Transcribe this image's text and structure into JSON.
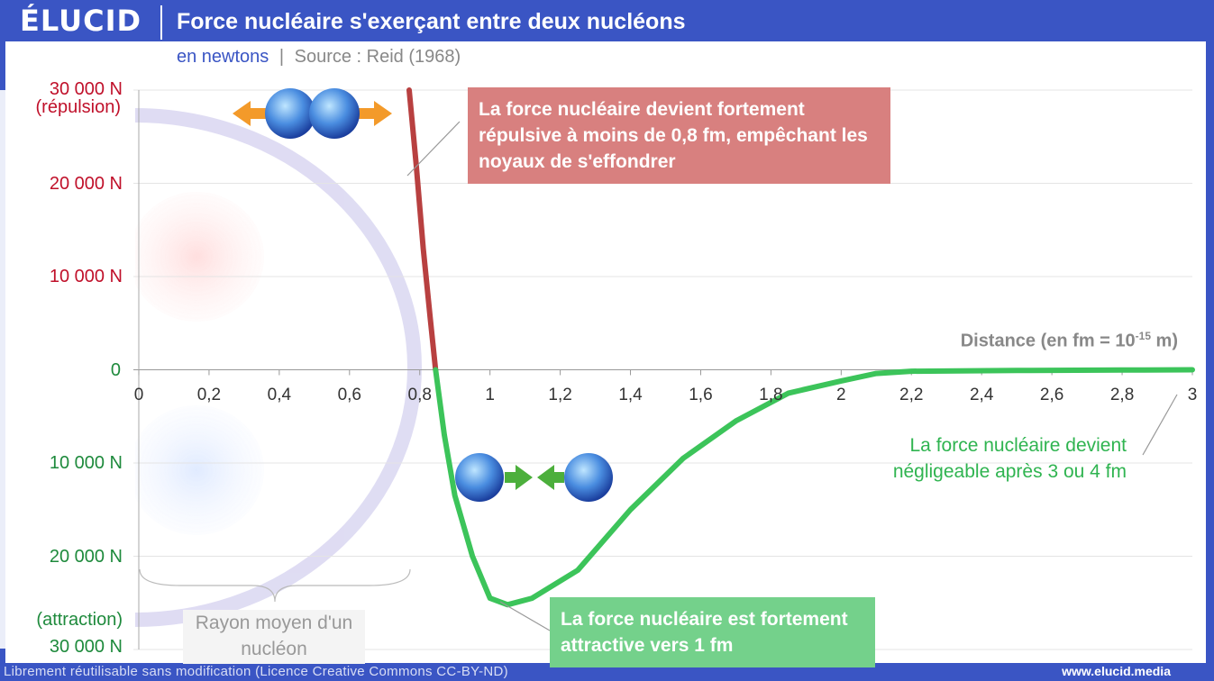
{
  "header": {
    "logo": "ÉLUCID",
    "title": "Force nucléaire s'exerçant entre deux nucléons"
  },
  "subtitle": {
    "unit": "en newtons",
    "separator": "|",
    "source": "Source : Reid (1968)"
  },
  "chart_data": {
    "type": "line",
    "xlabel": "Distance (en fm = 10",
    "xlabel_exp": "-15",
    "xlabel_suffix": " m)",
    "xlim": [
      0,
      3
    ],
    "ylim": [
      -30000,
      30000
    ],
    "x_ticks": [
      "0",
      "0,2",
      "0,4",
      "0,6",
      "0,8",
      "1",
      "1,2",
      "1,4",
      "1,6",
      "1,8",
      "2",
      "2,2",
      "2,4",
      "2,6",
      "2,8",
      "3"
    ],
    "y_ticks": [
      {
        "value": 30000,
        "label": "30 000 N",
        "color": "#c0102a"
      },
      {
        "value": 20000,
        "label": "20 000 N",
        "color": "#c0102a"
      },
      {
        "value": 10000,
        "label": "10 000 N",
        "color": "#c0102a"
      },
      {
        "value": 0,
        "label": "0",
        "color": "#1e8a3c"
      },
      {
        "value": -10000,
        "label": "10 000 N",
        "color": "#1e8a3c"
      },
      {
        "value": -20000,
        "label": "20 000 N",
        "color": "#1e8a3c"
      },
      {
        "value": -30000,
        "label": "30 000 N",
        "color": "#1e8a3c"
      }
    ],
    "y_top_note": "(répulsion)",
    "y_bottom_note": "(attraction)",
    "grid": true,
    "series": [
      {
        "color": "#b84040",
        "points": [
          [
            0.77,
            30000
          ],
          [
            0.79,
            22000
          ],
          [
            0.81,
            13000
          ],
          [
            0.83,
            5500
          ],
          [
            0.845,
            0
          ]
        ]
      },
      {
        "color": "#3cc45a",
        "points": [
          [
            0.845,
            0
          ],
          [
            0.87,
            -7000
          ],
          [
            0.9,
            -13500
          ],
          [
            0.95,
            -20000
          ],
          [
            1.0,
            -24500
          ],
          [
            1.05,
            -25200
          ],
          [
            1.12,
            -24500
          ],
          [
            1.25,
            -21500
          ],
          [
            1.4,
            -15000
          ],
          [
            1.55,
            -9500
          ],
          [
            1.7,
            -5500
          ],
          [
            1.85,
            -2500
          ],
          [
            2.0,
            -1200
          ],
          [
            2.1,
            -400
          ],
          [
            2.2,
            -150
          ],
          [
            2.5,
            -80
          ],
          [
            2.8,
            -30
          ],
          [
            3.0,
            0
          ]
        ]
      }
    ],
    "annotations": {
      "repulsive": "La force nucléaire devient fortement répulsive à moins de 0,8 fm, empêchant les noyaux de s'effondrer",
      "attractive": "La force nucléaire est fortement attractive vers 1 fm",
      "negligible": "La force nucléaire devient négligeable après 3 ou 4 fm",
      "radius": "Rayon moyen d'un nucléon"
    }
  },
  "footer": {
    "license": "Librement réutilisable sans modification (Licence Creative Commons CC-BY-ND)",
    "site": "www.elucid.media"
  },
  "colors": {
    "brand": "#3a55c4",
    "repulsion": "#c0102a",
    "attraction": "#1e8a3c",
    "repulsion_curve": "#b84040",
    "attraction_curve": "#3cc45a"
  }
}
